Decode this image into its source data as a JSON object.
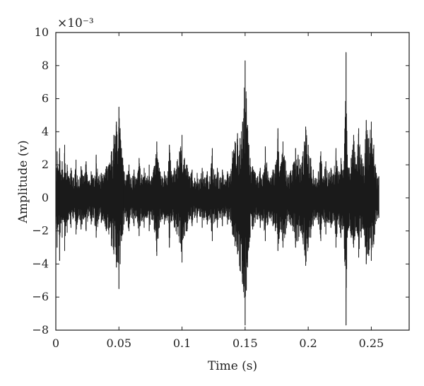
{
  "chart_data": {
    "type": "line",
    "title": "",
    "xlabel": "Time (s)",
    "ylabel": "Amplitude (v)",
    "y_scale_label": "×10⁻³",
    "xlim": [
      0,
      0.28
    ],
    "ylim": [
      -8,
      10
    ],
    "x_ticks": [
      0,
      0.05,
      0.1,
      0.15,
      0.2,
      0.25
    ],
    "x_tick_labels": [
      "0",
      "0.05",
      "0.1",
      "0.15",
      "0.2",
      "0.25"
    ],
    "y_ticks": [
      -8,
      -6,
      -4,
      -2,
      0,
      2,
      4,
      6,
      8,
      10
    ],
    "y_tick_labels": [
      "−8",
      "−6",
      "−4",
      "−2",
      "0",
      "2",
      "4",
      "6",
      "8",
      "10"
    ],
    "grid": false,
    "legend": "none",
    "line_color": "#1a1a1a",
    "series": [
      {
        "x": [
          0,
          0.001,
          0.002,
          0.003,
          0.004,
          0.005,
          0.006,
          0.007,
          0.008,
          0.009,
          0.01,
          0.012,
          0.014,
          0.016,
          0.018,
          0.02,
          0.022,
          0.024,
          0.026,
          0.028,
          0.03,
          0.032,
          0.034,
          0.036,
          0.038,
          0.04,
          0.042,
          0.044,
          0.046,
          0.048,
          0.05,
          0.051,
          0.052,
          0.053,
          0.054,
          0.056,
          0.058,
          0.06,
          0.062,
          0.064,
          0.066,
          0.068,
          0.07,
          0.072,
          0.074,
          0.076,
          0.078,
          0.08,
          0.082,
          0.084,
          0.086,
          0.088,
          0.09,
          0.092,
          0.094,
          0.096,
          0.098,
          0.1,
          0.102,
          0.104,
          0.106,
          0.108,
          0.11,
          0.112,
          0.114,
          0.116,
          0.118,
          0.12,
          0.122,
          0.124,
          0.126,
          0.128,
          0.13,
          0.132,
          0.134,
          0.136,
          0.138,
          0.14,
          0.142,
          0.144,
          0.146,
          0.148,
          0.15,
          0.151,
          0.152,
          0.153,
          0.154,
          0.156,
          0.158,
          0.16,
          0.162,
          0.164,
          0.166,
          0.168,
          0.17,
          0.172,
          0.174,
          0.176,
          0.178,
          0.18,
          0.182,
          0.184,
          0.186,
          0.188,
          0.19,
          0.192,
          0.194,
          0.196,
          0.198,
          0.2,
          0.202,
          0.204,
          0.206,
          0.208,
          0.21,
          0.212,
          0.214,
          0.216,
          0.218,
          0.22,
          0.222,
          0.224,
          0.226,
          0.228,
          0.23,
          0.231,
          0.232,
          0.234,
          0.236,
          0.238,
          0.24,
          0.242,
          0.244,
          0.246,
          0.248,
          0.25,
          0.252,
          0.254,
          0.256
        ],
        "upper": [
          1.2,
          2.8,
          1.6,
          3.0,
          1.4,
          2.2,
          1.1,
          3.2,
          1.5,
          2.0,
          1.3,
          1.8,
          1.2,
          2.3,
          1.1,
          1.9,
          1.3,
          2.2,
          1.0,
          1.6,
          1.2,
          2.6,
          1.3,
          1.5,
          1.4,
          1.9,
          2.0,
          2.8,
          3.8,
          4.6,
          5.5,
          4.2,
          3.0,
          2.4,
          1.6,
          1.4,
          2.0,
          1.2,
          1.7,
          1.1,
          2.4,
          1.4,
          1.8,
          1.2,
          2.0,
          1.3,
          1.9,
          3.4,
          1.8,
          1.3,
          1.6,
          1.2,
          3.2,
          1.4,
          1.8,
          2.2,
          2.8,
          3.8,
          2.4,
          2.0,
          1.3,
          1.7,
          1.2,
          1.5,
          1.1,
          1.8,
          1.2,
          1.6,
          1.3,
          3.0,
          1.4,
          1.8,
          1.2,
          1.7,
          1.1,
          1.6,
          1.3,
          2.8,
          3.4,
          3.9,
          3.6,
          4.6,
          8.3,
          6.0,
          4.4,
          3.2,
          2.4,
          1.9,
          1.5,
          1.3,
          1.8,
          1.4,
          3.1,
          1.6,
          1.2,
          1.7,
          2.0,
          4.2,
          1.9,
          3.4,
          2.2,
          1.4,
          1.6,
          2.0,
          3.0,
          2.6,
          2.0,
          2.8,
          4.3,
          3.2,
          2.4,
          1.7,
          1.2,
          1.6,
          2.8,
          1.3,
          2.2,
          1.5,
          1.8,
          1.4,
          3.0,
          1.6,
          2.4,
          1.7,
          8.8,
          2.6,
          1.8,
          2.4,
          3.8,
          2.0,
          4.2,
          2.6,
          1.9,
          4.7,
          3.6,
          4.6,
          3.2,
          1.5,
          1.3
        ],
        "lower": [
          -1.4,
          -3.0,
          -1.6,
          -3.8,
          -1.5,
          -2.4,
          -1.2,
          -3.2,
          -1.7,
          -2.1,
          -1.3,
          -1.8,
          -1.2,
          -2.2,
          -1.1,
          -1.9,
          -1.3,
          -2.0,
          -1.1,
          -1.6,
          -1.2,
          -2.4,
          -1.3,
          -1.5,
          -1.4,
          -2.0,
          -2.2,
          -2.9,
          -3.4,
          -4.2,
          -5.5,
          -4.0,
          -2.6,
          -2.2,
          -1.6,
          -1.4,
          -2.0,
          -1.2,
          -1.7,
          -1.1,
          -2.3,
          -1.4,
          -1.8,
          -1.2,
          -2.0,
          -1.3,
          -1.9,
          -3.5,
          -1.8,
          -1.3,
          -1.6,
          -1.2,
          -3.0,
          -1.4,
          -1.8,
          -2.2,
          -2.7,
          -3.9,
          -2.3,
          -2.0,
          -1.3,
          -1.7,
          -1.2,
          -1.5,
          -1.1,
          -1.8,
          -1.2,
          -1.6,
          -1.3,
          -2.6,
          -1.4,
          -1.8,
          -1.2,
          -1.7,
          -1.1,
          -1.6,
          -1.3,
          -2.2,
          -2.9,
          -3.4,
          -4.4,
          -5.2,
          -7.7,
          -5.6,
          -4.2,
          -3.0,
          -2.4,
          -1.9,
          -1.5,
          -1.3,
          -1.8,
          -1.4,
          -2.6,
          -1.6,
          -1.2,
          -1.7,
          -2.0,
          -3.2,
          -1.9,
          -3.0,
          -2.2,
          -1.4,
          -1.6,
          -2.0,
          -3.0,
          -2.6,
          -2.0,
          -2.8,
          -4.1,
          -3.0,
          -2.4,
          -1.7,
          -1.2,
          -1.6,
          -2.6,
          -1.3,
          -2.2,
          -1.5,
          -1.8,
          -1.4,
          -3.0,
          -1.6,
          -2.4,
          -1.7,
          -7.7,
          -2.4,
          -1.8,
          -2.4,
          -3.0,
          -2.0,
          -3.6,
          -2.4,
          -1.9,
          -4.0,
          -3.5,
          -3.8,
          -2.8,
          -1.4,
          -1.2
        ]
      }
    ]
  }
}
